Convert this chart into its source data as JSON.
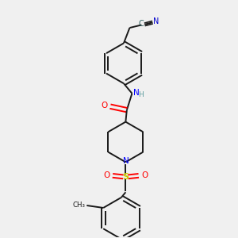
{
  "background_color": "#f0f0f0",
  "bond_color": "#1a1a1a",
  "atom_colors": {
    "N": "#0000ff",
    "O": "#ff0000",
    "S": "#cccc00",
    "C": "#1a1a1a",
    "CN_C": "#2f6060",
    "CN_N": "#0000cd",
    "NH_N": "#0000ff",
    "NH_H": "#5f9ea0"
  },
  "figsize": [
    3.0,
    3.0
  ],
  "dpi": 100
}
